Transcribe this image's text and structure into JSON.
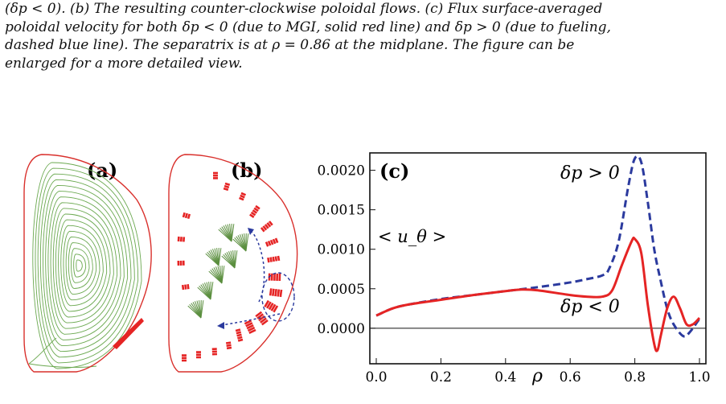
{
  "caption": {
    "line1": "(δp < 0). (b) The resulting counter-clockwise poloidal flows. (c) Flux surface-averaged",
    "line2": "poloidal velocity for both δp < 0 (due to MGI, solid red line) and δp > 0 (due to fueling,",
    "line3": "dashed blue line). The separatrix is at ρ = 0.86 at the midplane. The figure can be",
    "line4": "enlarged for a more detailed view."
  },
  "panels": {
    "a_label": "(a)",
    "b_label": "(b)",
    "c_label": "(c)"
  },
  "colors": {
    "flux_surface": "#6aa84f",
    "boundary": "#d9302c",
    "mgi_red": "#e52424",
    "fuel_blue": "#2b3a9e",
    "arrow_green": "#5b8f3f"
  },
  "chart_data": {
    "type": "line",
    "title": "(c)",
    "ylabel": "< u_θ >",
    "xlabel": "ρ",
    "xlim": [
      0.0,
      1.0
    ],
    "ylim": [
      -0.00045,
      0.00222
    ],
    "xticks": [
      "0.0",
      "0.2",
      "0.4",
      "0.6",
      "0.8",
      "1.0"
    ],
    "yticks": [
      "0.0000",
      "0.0005",
      "0.0010",
      "0.0015",
      "0.0020"
    ],
    "series": [
      {
        "name": "δp > 0",
        "style": "dashed",
        "color": "#2b3a9e",
        "x": [
          0.0,
          0.05,
          0.1,
          0.2,
          0.3,
          0.4,
          0.5,
          0.6,
          0.65,
          0.7,
          0.72,
          0.75,
          0.78,
          0.8,
          0.82,
          0.84,
          0.86,
          0.88,
          0.9,
          0.92,
          0.95,
          0.97,
          1.0
        ],
        "y": [
          0.00016,
          0.00025,
          0.0003,
          0.00037,
          0.00042,
          0.00047,
          0.00052,
          0.00058,
          0.00062,
          0.00067,
          0.00075,
          0.0011,
          0.0018,
          0.00215,
          0.0021,
          0.0016,
          0.001,
          0.0006,
          0.00025,
          5e-05,
          -0.0001,
          -5e-05,
          0.00012
        ]
      },
      {
        "name": "δp < 0",
        "style": "solid",
        "color": "#e52424",
        "x": [
          0.0,
          0.05,
          0.1,
          0.2,
          0.3,
          0.4,
          0.45,
          0.5,
          0.6,
          0.65,
          0.7,
          0.73,
          0.76,
          0.79,
          0.8,
          0.82,
          0.84,
          0.86,
          0.87,
          0.88,
          0.9,
          0.92,
          0.94,
          0.96,
          0.98,
          1.0
        ],
        "y": [
          0.00016,
          0.00025,
          0.0003,
          0.00036,
          0.00042,
          0.00047,
          0.00049,
          0.00048,
          0.00042,
          0.0004,
          0.0004,
          0.00048,
          0.0008,
          0.0011,
          0.00113,
          0.00095,
          0.0003,
          -0.0002,
          -0.00028,
          -0.0001,
          0.00025,
          0.0004,
          0.00025,
          5e-05,
          5e-05,
          0.00013
        ]
      }
    ],
    "annotations": [
      "δp > 0",
      "δp < 0"
    ],
    "grid": false
  }
}
